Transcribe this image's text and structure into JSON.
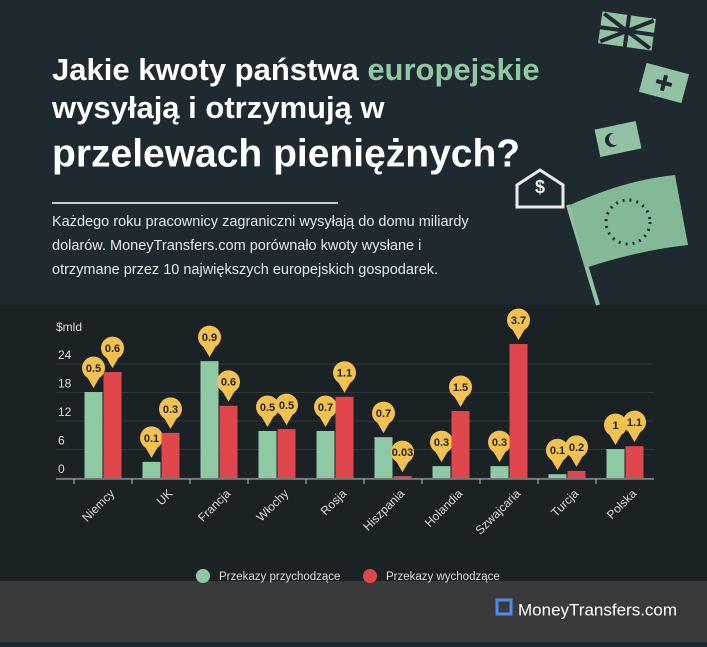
{
  "header": {
    "title_parts": [
      "Jakie kwoty państwa ",
      "europejskie",
      "wysyłają i otrzymują w",
      "przelewach pieniężnych?"
    ],
    "subtitle_lines": [
      "Każdego roku pracownicy zagraniczni wysyłają do domu miliardy",
      "dolarów. MoneyTransfers.com porównało kwoty wysłane i",
      "otrzymane przez 10 największych europejskich gospodarek."
    ]
  },
  "chart_data": {
    "type": "bar",
    "y_label": "$mld",
    "categories": [
      "Niemcy",
      "UK",
      "Francja",
      "Włochy",
      "Rosja",
      "Hiszpania",
      "Holandia",
      "Szwajcaria",
      "Turcja",
      "Polska"
    ],
    "series": [
      {
        "name": "Przekazy przychodzące",
        "color": "#8fc9a3",
        "values": [
          18.1,
          3.4,
          24.6,
          9.9,
          9.9,
          8.6,
          2.5,
          2.5,
          0.8,
          6.1
        ],
        "badges": [
          0.5,
          0.1,
          0.9,
          0.5,
          0.7,
          0.7,
          0.3,
          0.3,
          0.1,
          1
        ]
      },
      {
        "name": "Przekazy wychodzące",
        "color": "#e0474c",
        "values": [
          22.3,
          9.5,
          15.2,
          10.3,
          17.1,
          0.4,
          14.1,
          28.2,
          1.5,
          6.7
        ],
        "badges": [
          0.6,
          0.3,
          0.6,
          0.5,
          1.1,
          0.03,
          1.5,
          3.7,
          0.2,
          1.1
        ]
      }
    ],
    "ylim": [
      0,
      30
    ],
    "yticks": [
      0,
      6,
      12,
      18,
      24
    ],
    "grid": true,
    "legend": "bottom"
  },
  "footer": {
    "brand": "MoneyTransfers.com"
  }
}
